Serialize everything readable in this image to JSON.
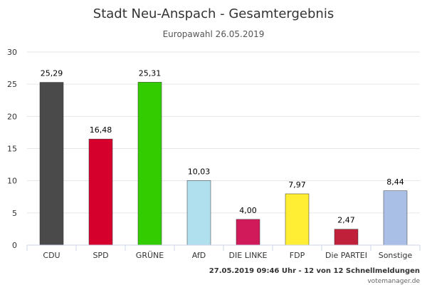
{
  "chart_data": {
    "type": "bar",
    "title": "Stadt Neu-Anspach - Gesamtergebnis",
    "subtitle": "Europawahl 26.05.2019",
    "xlabel": "",
    "ylabel": "",
    "ylim": [
      0,
      30
    ],
    "yticks": [
      "0",
      "5",
      "10",
      "15",
      "20",
      "25",
      "30"
    ],
    "grid": true,
    "legend": "none",
    "categories": [
      "CDU",
      "SPD",
      "GRÜNE",
      "AfD",
      "DIE LINKE",
      "FDP",
      "Die PARTEI",
      "Sonstige"
    ],
    "values": [
      25.29,
      16.48,
      25.31,
      10.03,
      4.0,
      7.97,
      2.47,
      8.44
    ],
    "value_labels": [
      "25,29",
      "16,48",
      "25,31",
      "10,03",
      "4,00",
      "7,97",
      "2,47",
      "8,44"
    ],
    "colors": [
      "#4a4a4a",
      "#d5002c",
      "#33cc00",
      "#b0e0ee",
      "#d11a5a",
      "#ffee33",
      "#c0203a",
      "#aabfe6"
    ]
  },
  "footer": {
    "timestamp": "27.05.2019 09:46 Uhr - 12 von 12 Schnellmeldungen",
    "credit": "votemanager.de"
  }
}
